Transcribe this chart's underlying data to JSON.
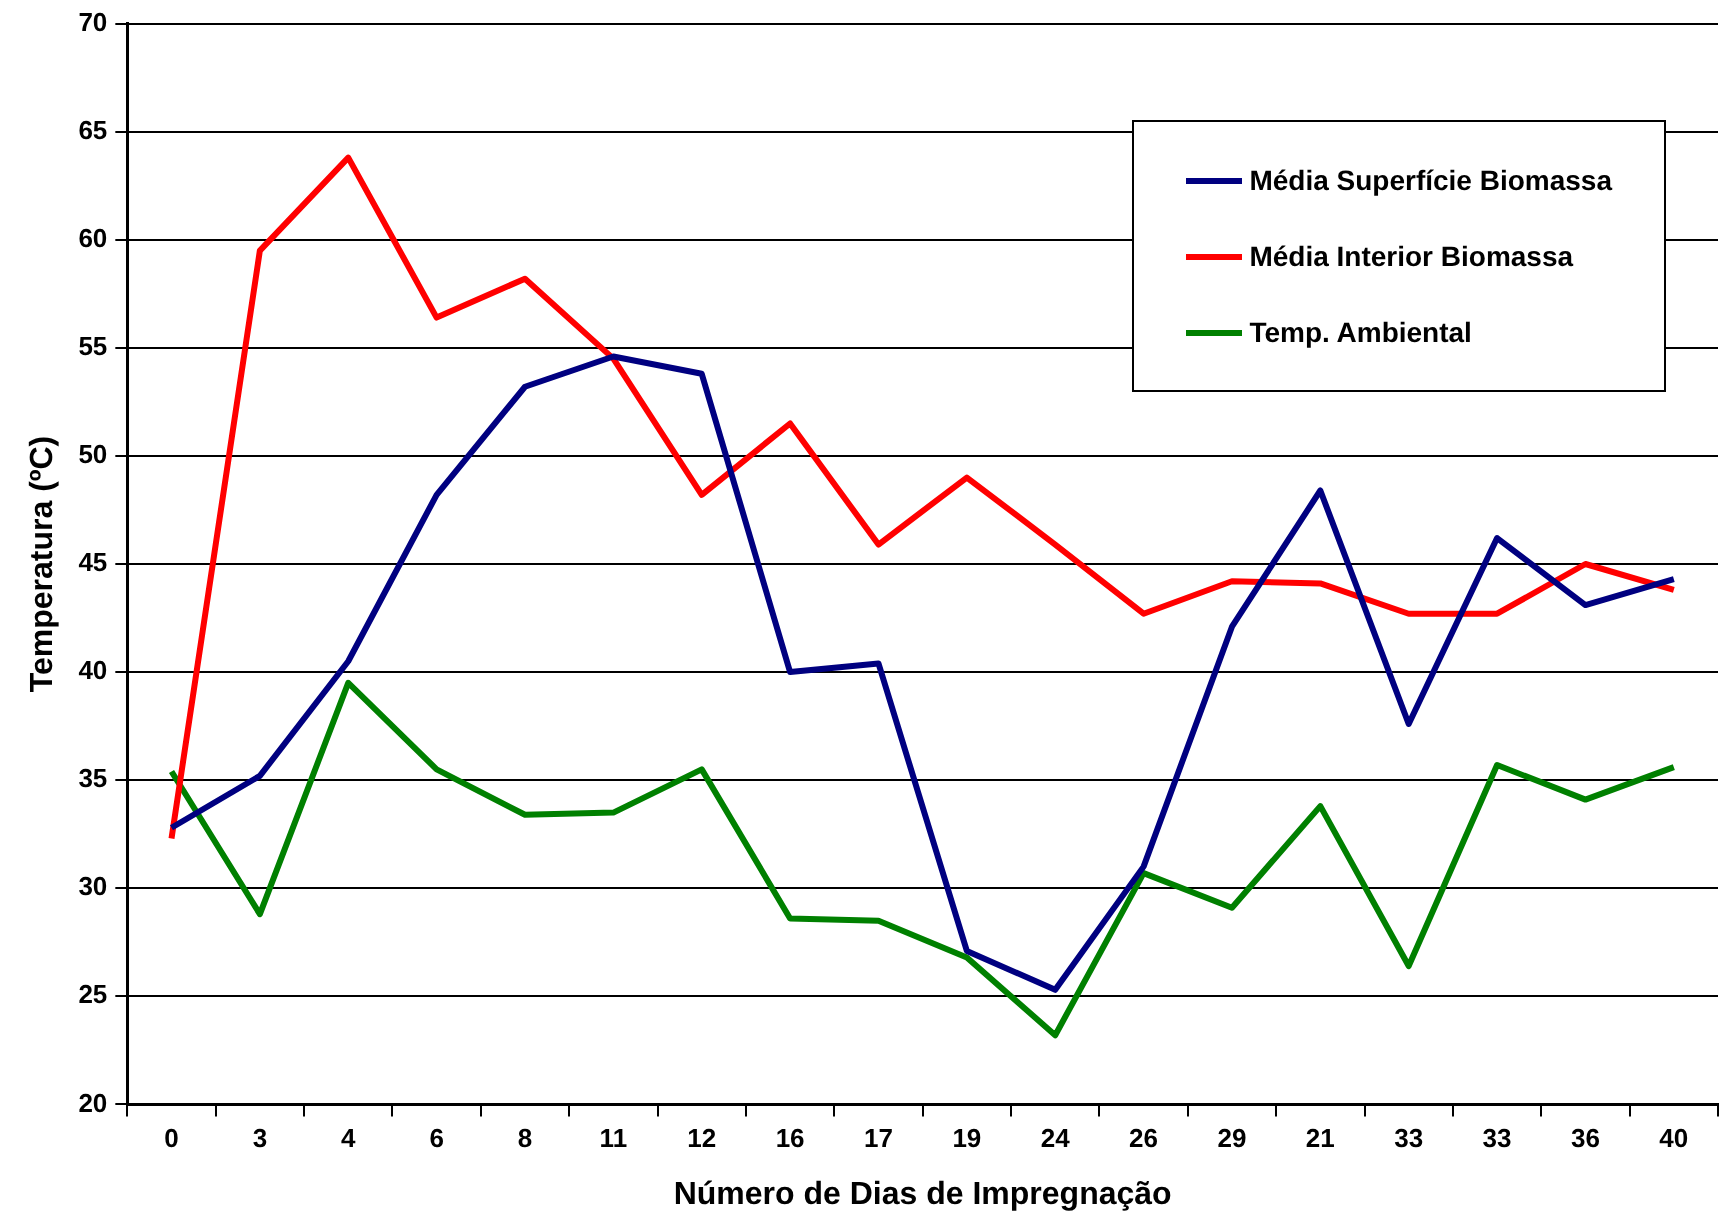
{
  "chart_data": {
    "type": "line",
    "xlabel": "Número de Dias de Impregnação",
    "ylabel": "Temperatura (ºC)",
    "categories": [
      "0",
      "3",
      "4",
      "6",
      "8",
      "11",
      "12",
      "16",
      "17",
      "19",
      "24",
      "26",
      "29",
      "21",
      "33",
      "33",
      "36",
      "40"
    ],
    "series": [
      {
        "name": "Média Superfície Biomassa",
        "color": "#000080",
        "values": [
          32.8,
          35.2,
          40.5,
          48.2,
          53.2,
          54.6,
          53.8,
          40.0,
          40.4,
          27.1,
          25.3,
          31.0,
          42.1,
          48.4,
          37.6,
          46.2,
          43.1,
          44.3
        ]
      },
      {
        "name": "Média Interior Biomassa",
        "color": "#ff0000",
        "values": [
          32.3,
          59.5,
          63.8,
          56.4,
          58.2,
          54.5,
          48.2,
          51.5,
          45.9,
          49.0,
          45.9,
          42.7,
          44.2,
          44.1,
          42.7,
          42.7,
          45.0,
          43.8
        ]
      },
      {
        "name": "Temp. Ambiental",
        "color": "#008000",
        "values": [
          35.4,
          28.8,
          39.5,
          35.5,
          33.4,
          33.5,
          35.5,
          28.6,
          28.5,
          26.8,
          23.2,
          30.7,
          29.1,
          33.8,
          26.4,
          35.7,
          34.1,
          35.6
        ]
      }
    ],
    "ylim": [
      20,
      70
    ],
    "yticks": [
      20,
      25,
      30,
      35,
      40,
      45,
      50,
      55,
      60,
      65,
      70
    ],
    "grid": "y",
    "legend": "top right",
    "marker": "none",
    "line_style": "solid"
  }
}
